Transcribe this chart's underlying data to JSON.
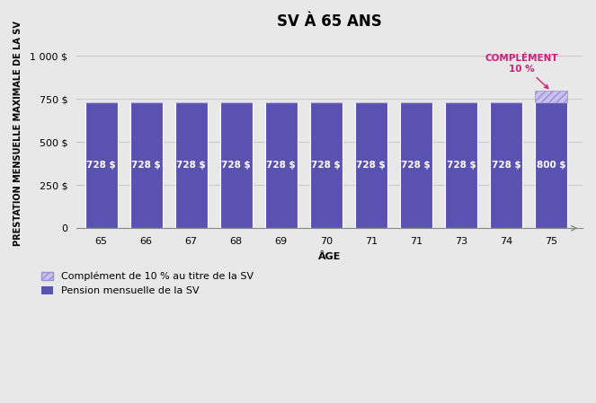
{
  "title": "SV À 65 ANS",
  "xlabel": "ÂGE",
  "ylabel": "PRESTATION MENSUELLE MAXIMALE DE LA SV",
  "categories": [
    "65",
    "66",
    "67",
    "68",
    "69",
    "70",
    "71",
    "71",
    "73",
    "74",
    "75"
  ],
  "base_values": [
    728,
    728,
    728,
    728,
    728,
    728,
    728,
    728,
    728,
    728,
    728
  ],
  "complement_values": [
    0,
    0,
    0,
    0,
    0,
    0,
    0,
    0,
    0,
    0,
    72
  ],
  "bar_color": "#5a52b0",
  "complement_facecolor": "#c8c0f0",
  "complement_edgecolor": "#9890d0",
  "bar_labels_first10": "728 $",
  "bar_label_last": "800 $",
  "complement_label_text": "COMPLÉMENT\n10 %",
  "complement_label_color": "#d41b7a",
  "background_color": "#e8e8e8",
  "ylim": [
    0,
    1100
  ],
  "yticks": [
    0,
    250,
    500,
    750,
    1000
  ],
  "ytick_labels": [
    "0",
    "250 $",
    "500 $",
    "750 $",
    "1 000 $"
  ],
  "legend_entries": [
    "Complément de 10 % au titre de la SV",
    "Pension mensuelle de la SV"
  ],
  "title_fontsize": 12,
  "axis_label_fontsize": 8,
  "bar_label_fontsize": 7.5,
  "tick_fontsize": 8,
  "grid_color": "#c8c8c8",
  "spine_color": "#888888"
}
